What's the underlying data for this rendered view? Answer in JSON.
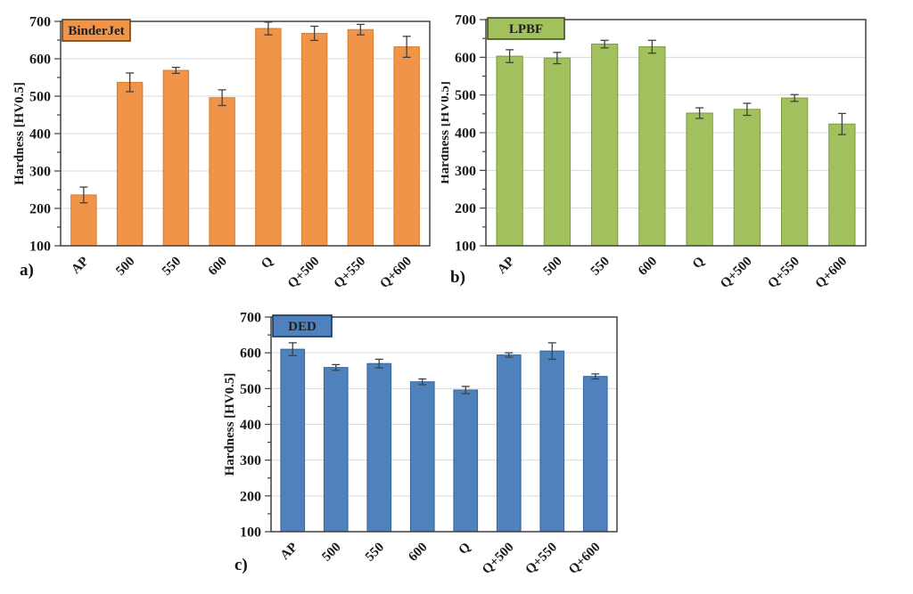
{
  "figure": {
    "background": "#ffffff",
    "description_colors": {
      "axis": "#404040",
      "grid": "#D9D9D9",
      "error_bar": "#404040",
      "text": "#1A1A1A"
    }
  },
  "chart_data": [
    {
      "type": "bar",
      "panel_label": "a)",
      "legend": "BinderJet",
      "bar_color": "#F0944A",
      "bar_border": "#D87E2E",
      "legend_border": "#6B4314",
      "categories": [
        "AP",
        "500",
        "550",
        "600",
        "Q",
        "Q+500",
        "Q+550",
        "Q+600"
      ],
      "values": [
        236,
        537,
        569,
        496,
        681,
        668,
        678,
        632
      ],
      "errors": [
        21,
        25,
        8,
        21,
        17,
        19,
        14,
        28
      ],
      "ylabel": "Hardness [HV0.5]",
      "ylim": [
        100,
        700
      ],
      "yticks": [
        100,
        200,
        300,
        400,
        500,
        600,
        700
      ],
      "grid": true,
      "legend_position": "top-left"
    },
    {
      "type": "bar",
      "panel_label": "b)",
      "legend": "LPBF",
      "bar_color": "#A2C15E",
      "bar_border": "#7E9A3E",
      "legend_border": "#3F5220",
      "categories": [
        "AP",
        "500",
        "550",
        "600",
        "Q",
        "Q+500",
        "Q+550",
        "Q+600"
      ],
      "values": [
        603,
        598,
        635,
        628,
        452,
        462,
        492,
        423
      ],
      "errors": [
        17,
        15,
        10,
        17,
        14,
        16,
        9,
        28
      ],
      "ylabel": "Hardness [HV0.5]",
      "ylim": [
        100,
        700
      ],
      "yticks": [
        100,
        200,
        300,
        400,
        500,
        600,
        700
      ],
      "grid": true,
      "legend_position": "top-left"
    },
    {
      "type": "bar",
      "panel_label": "c)",
      "legend": "DED",
      "bar_color": "#4F81BD",
      "bar_border": "#36649B",
      "legend_border": "#17365D",
      "categories": [
        "AP",
        "500",
        "550",
        "600",
        "Q",
        "Q+500",
        "Q+550",
        "Q+600"
      ],
      "values": [
        610,
        559,
        570,
        519,
        496,
        594,
        605,
        534
      ],
      "errors": [
        18,
        8,
        12,
        8,
        10,
        6,
        23,
        7
      ],
      "ylabel": "Hardness [HV0.5]",
      "ylim": [
        100,
        700
      ],
      "yticks": [
        100,
        200,
        300,
        400,
        500,
        600,
        700
      ],
      "grid": true,
      "legend_position": "top-left"
    }
  ]
}
